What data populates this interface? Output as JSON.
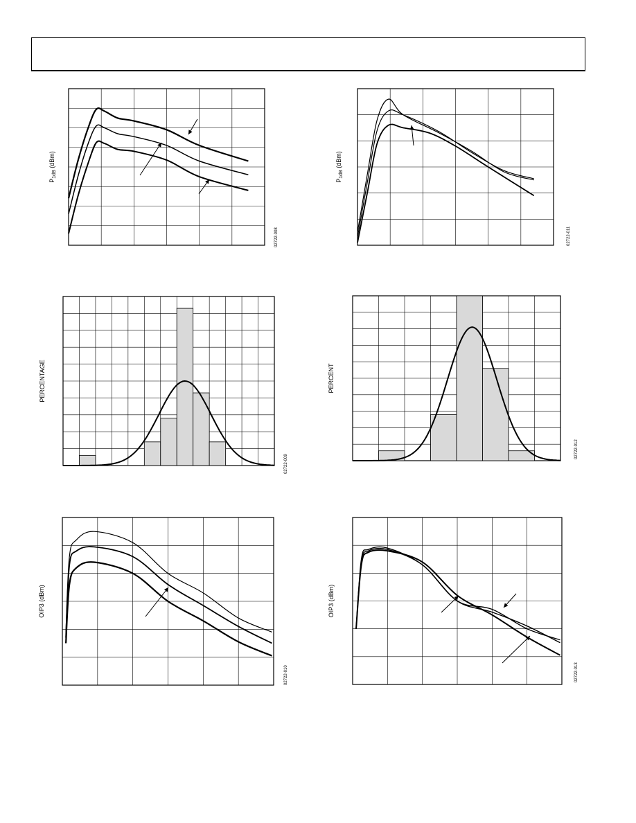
{
  "charts": [
    {
      "id": "chart1",
      "ylabel_main": "P",
      "ylabel_sub": "1dB",
      "ylabel_unit": " (dBm)",
      "fig_code": "02722-008",
      "chart_data": {
        "type": "line",
        "grid": true,
        "xlim": [
          0,
          6
        ],
        "ylim": [
          0,
          8
        ],
        "series": [
          {
            "values": [
              [
                0,
                2.4
              ],
              [
                0.3,
                4.4
              ],
              [
                0.6,
                6.0
              ],
              [
                0.85,
                6.95
              ],
              [
                1.1,
                6.85
              ],
              [
                1.5,
                6.5
              ],
              [
                2,
                6.35
              ],
              [
                3,
                5.9
              ],
              [
                4,
                5.1
              ],
              [
                5.5,
                4.3
              ]
            ]
          },
          {
            "values": [
              [
                0,
                1.6
              ],
              [
                0.3,
                3.6
              ],
              [
                0.6,
                5.2
              ],
              [
                0.85,
                6.1
              ],
              [
                1.1,
                6.0
              ],
              [
                1.5,
                5.7
              ],
              [
                2,
                5.55
              ],
              [
                3,
                5.1
              ],
              [
                4,
                4.3
              ],
              [
                5.5,
                3.6
              ]
            ]
          },
          {
            "values": [
              [
                0,
                0.6
              ],
              [
                0.3,
                2.6
              ],
              [
                0.6,
                4.2
              ],
              [
                0.85,
                5.25
              ],
              [
                1.1,
                5.2
              ],
              [
                1.5,
                4.9
              ],
              [
                2,
                4.8
              ],
              [
                3,
                4.35
              ],
              [
                4,
                3.5
              ],
              [
                5.5,
                2.8
              ]
            ]
          }
        ]
      }
    },
    {
      "id": "chart2",
      "ylabel_main": "P",
      "ylabel_sub": "1dB",
      "ylabel_unit": " (dBm)",
      "fig_code": "02722-011",
      "chart_data": {
        "type": "line",
        "grid": true,
        "xlim": [
          0,
          6
        ],
        "ylim": [
          0,
          6
        ],
        "series": [
          {
            "values": [
              [
                0,
                0.5
              ],
              [
                0.3,
                2.7
              ],
              [
                0.6,
                4.8
              ],
              [
                0.95,
                5.6
              ],
              [
                1.4,
                5.0
              ],
              [
                2.5,
                4.3
              ],
              [
                3.5,
                3.6
              ],
              [
                4.5,
                2.8
              ],
              [
                5.4,
                2.5
              ]
            ]
          },
          {
            "values": [
              [
                0,
                0.3
              ],
              [
                0.3,
                2.4
              ],
              [
                0.6,
                4.4
              ],
              [
                0.95,
                5.15
              ],
              [
                1.4,
                5.0
              ],
              [
                2.5,
                4.35
              ],
              [
                3.5,
                3.55
              ],
              [
                4.5,
                2.85
              ],
              [
                5.4,
                2.55
              ]
            ]
          },
          {
            "values": [
              [
                0,
                0.1
              ],
              [
                0.3,
                2.0
              ],
              [
                0.6,
                3.9
              ],
              [
                0.95,
                4.6
              ],
              [
                1.4,
                4.5
              ],
              [
                2.2,
                4.3
              ],
              [
                3.0,
                3.8
              ],
              [
                4.0,
                3.0
              ],
              [
                5.4,
                1.9
              ]
            ]
          }
        ]
      }
    },
    {
      "id": "chart3",
      "ylabel": "PERCENTAGE",
      "fig_code": "02722-009",
      "chart_data": {
        "type": "bar",
        "grid": true,
        "xlim": [
          0,
          13
        ],
        "ylim": [
          0,
          10
        ],
        "bars": [
          [
            1,
            0.6
          ],
          [
            5,
            1.4
          ],
          [
            6,
            2.8
          ],
          [
            7,
            9.3
          ],
          [
            8,
            4.3
          ],
          [
            9,
            1.4
          ]
        ],
        "curve_peak": 5.0,
        "curve_center": 7.5,
        "curve_sigma": 1.6
      }
    },
    {
      "id": "chart4",
      "ylabel": "PERCENT",
      "fig_code": "02722-012",
      "chart_data": {
        "type": "bar",
        "grid": true,
        "xlim": [
          0,
          8
        ],
        "ylim": [
          0,
          10
        ],
        "bars": [
          [
            1,
            0.6
          ],
          [
            3,
            2.8
          ],
          [
            4,
            10.0
          ],
          [
            5,
            5.6
          ],
          [
            6,
            0.6
          ]
        ],
        "curve_peak": 8.1,
        "curve_center": 4.6,
        "curve_sigma": 0.95
      }
    },
    {
      "id": "chart5",
      "ylabel": "OIP3 (dBm)",
      "fig_code": "02722-010",
      "chart_data": {
        "type": "line",
        "grid": true,
        "xlim": [
          0,
          6
        ],
        "ylim": [
          0,
          6
        ],
        "series": [
          {
            "values": [
              [
                0.1,
                1.9
              ],
              [
                0.2,
                4.6
              ],
              [
                0.4,
                5.2
              ],
              [
                0.9,
                5.5
              ],
              [
                2.0,
                5.1
              ],
              [
                3.0,
                4.0
              ],
              [
                4.0,
                3.3
              ],
              [
                5.0,
                2.4
              ],
              [
                5.95,
                1.9
              ]
            ]
          },
          {
            "values": [
              [
                0.1,
                1.7
              ],
              [
                0.2,
                4.3
              ],
              [
                0.4,
                4.8
              ],
              [
                0.9,
                4.95
              ],
              [
                2.0,
                4.6
              ],
              [
                3.0,
                3.6
              ],
              [
                4.0,
                2.85
              ],
              [
                5.0,
                2.1
              ],
              [
                5.95,
                1.5
              ]
            ]
          },
          {
            "values": [
              [
                0.1,
                1.5
              ],
              [
                0.2,
                3.6
              ],
              [
                0.4,
                4.2
              ],
              [
                0.9,
                4.4
              ],
              [
                2.0,
                4.0
              ],
              [
                3.0,
                3.0
              ],
              [
                4.0,
                2.3
              ],
              [
                5.0,
                1.55
              ],
              [
                5.95,
                1.05
              ]
            ]
          }
        ]
      }
    },
    {
      "id": "chart6",
      "ylabel": "OIP3 (dBm)",
      "fig_code": "02722-013",
      "chart_data": {
        "type": "line",
        "grid": true,
        "xlim": [
          0,
          6
        ],
        "ylim": [
          0,
          6
        ],
        "series": [
          {
            "values": [
              [
                0.1,
                2.0
              ],
              [
                0.25,
                4.5
              ],
              [
                0.45,
                4.85
              ],
              [
                1.0,
                4.9
              ],
              [
                2.0,
                4.3
              ],
              [
                3.0,
                3.0
              ],
              [
                4.0,
                2.7
              ],
              [
                5.0,
                2.0
              ],
              [
                5.95,
                1.6
              ]
            ]
          },
          {
            "values": [
              [
                0.1,
                2.0
              ],
              [
                0.25,
                4.4
              ],
              [
                0.45,
                4.8
              ],
              [
                1.0,
                4.85
              ],
              [
                2.0,
                4.3
              ],
              [
                3.0,
                3.0
              ],
              [
                4.0,
                2.6
              ],
              [
                5.0,
                2.1
              ],
              [
                5.95,
                1.5
              ]
            ]
          },
          {
            "values": [
              [
                0.1,
                2.0
              ],
              [
                0.25,
                4.3
              ],
              [
                0.45,
                4.75
              ],
              [
                1.0,
                4.8
              ],
              [
                2.0,
                4.4
              ],
              [
                3.0,
                3.2
              ],
              [
                4.0,
                2.5
              ],
              [
                5.0,
                1.7
              ],
              [
                5.95,
                1.05
              ]
            ]
          }
        ]
      }
    }
  ]
}
